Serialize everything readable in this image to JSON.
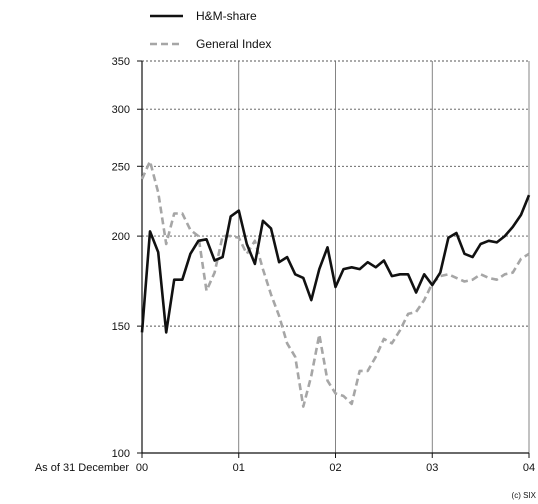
{
  "chart_data": {
    "type": "line",
    "x_labels": [
      "00",
      "01",
      "02",
      "03",
      "04"
    ],
    "x_prefix": "As of 31 December",
    "yscale": "log",
    "ylim": [
      100,
      350
    ],
    "y_ticks": [
      100,
      150,
      200,
      250,
      300,
      350
    ],
    "grid": "dotted horizontal, solid vertical",
    "legend_position": "top-left",
    "series": [
      {
        "name": "H&M-share",
        "color": "#111111",
        "style": "solid",
        "x": [
          0.0,
          0.083,
          0.167,
          0.25,
          0.333,
          0.417,
          0.5,
          0.583,
          0.667,
          0.75,
          0.833,
          0.917,
          1.0,
          1.083,
          1.167,
          1.25,
          1.333,
          1.417,
          1.5,
          1.583,
          1.667,
          1.75,
          1.833,
          1.917,
          2.0,
          2.083,
          2.167,
          2.25,
          2.333,
          2.417,
          2.5,
          2.583,
          2.667,
          2.75,
          2.833,
          2.917,
          3.0,
          3.083,
          3.167,
          3.25,
          3.333,
          3.417,
          3.5,
          3.583,
          3.667,
          3.75,
          3.833,
          3.917,
          4.0
        ],
        "values": [
          147,
          203,
          190,
          147,
          174,
          174,
          189,
          197,
          198,
          185,
          187,
          213,
          217,
          195,
          183,
          210,
          205,
          184,
          187,
          177,
          175,
          163,
          180,
          193,
          170,
          180,
          181,
          180,
          184,
          181,
          185,
          176,
          177,
          177,
          167,
          177,
          171,
          178,
          199,
          202,
          189,
          187,
          195,
          197,
          196,
          200,
          206,
          214,
          228
        ]
      },
      {
        "name": "General Index",
        "color": "#a6a6a6",
        "style": "dashed",
        "x": [
          0.0,
          0.083,
          0.167,
          0.25,
          0.333,
          0.417,
          0.5,
          0.583,
          0.667,
          0.75,
          0.833,
          0.917,
          1.0,
          1.083,
          1.167,
          1.25,
          1.333,
          1.417,
          1.5,
          1.583,
          1.667,
          1.75,
          1.833,
          1.917,
          2.0,
          2.083,
          2.167,
          2.25,
          2.333,
          2.417,
          2.5,
          2.583,
          2.667,
          2.75,
          2.833,
          2.917,
          3.0,
          3.083,
          3.167,
          3.25,
          3.333,
          3.417,
          3.5,
          3.583,
          3.667,
          3.75,
          3.833,
          3.917,
          4.0
        ],
        "values": [
          240,
          254,
          230,
          195,
          215,
          215,
          204,
          200,
          168,
          178,
          200,
          200,
          199,
          189,
          197,
          180,
          166,
          155,
          142,
          136,
          116,
          128,
          146,
          126,
          121,
          120,
          117,
          130,
          130,
          136,
          144,
          142,
          148,
          156,
          157,
          163,
          172,
          176,
          177,
          175,
          173,
          174,
          177,
          175,
          174,
          177,
          178,
          186,
          189
        ]
      }
    ]
  },
  "legend": {
    "share_label": "H&M-share",
    "index_label": "General Index"
  },
  "copyright": "(c) SIX"
}
